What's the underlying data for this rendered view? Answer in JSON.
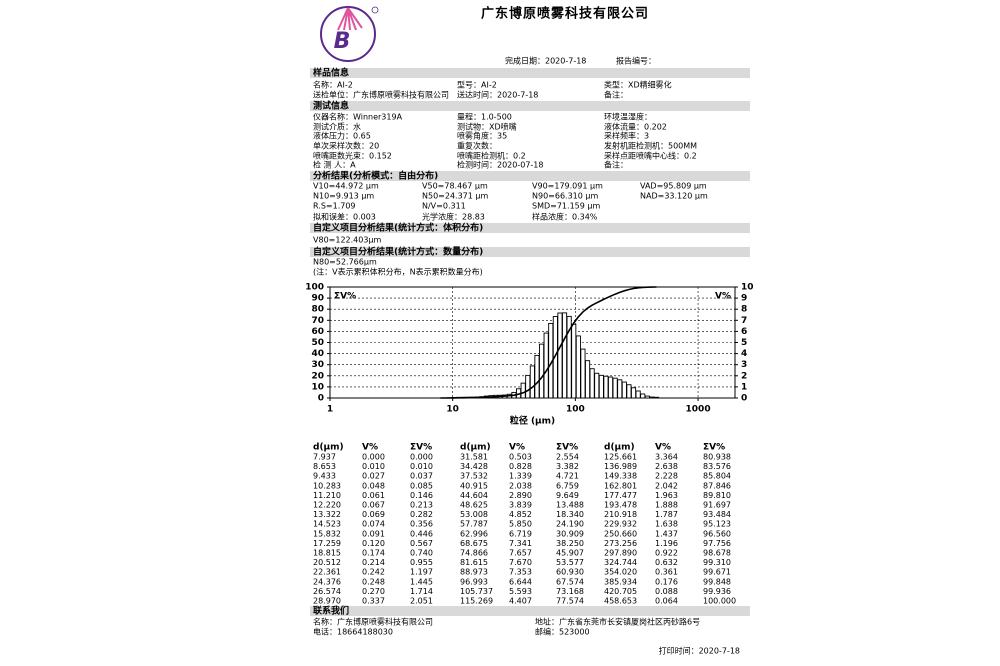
{
  "header": {
    "logo": "B",
    "title": "广东博原喷雾科技有限公司",
    "completion_date": "完成日期：2020-7-18",
    "report_no": "报告编号："
  },
  "sections": [
    {
      "title": "样品信息",
      "rows": [
        [
          "名称：AI-2",
          "型号：AI-2",
          "类型：XD精细雾化"
        ],
        [
          "送检单位：广东博原喷雾科技有限公司",
          "送达时间：2020-7-18",
          "备注："
        ]
      ]
    },
    {
      "title": "测试信息",
      "rows": [
        [
          "仪器名称：Winner319A",
          "量程：1.0-500",
          "环境温湿度："
        ],
        [
          "测试介质：水",
          "测试物：XD喷嘴",
          "液体流量：0.202"
        ],
        [
          "液体压力：0.65",
          "喷雾角度：35",
          "采样频率：3"
        ],
        [
          "单次采样次数：20",
          "重复次数：",
          "发射机距检测机：500MM"
        ],
        [
          "喷嘴距数光束：0.152",
          "喷嘴距检测机：0.2",
          "采样点距喷嘴中心线：0.2"
        ],
        [
          "检 测 人：A",
          "检测时间：2020-07-18",
          "备注："
        ]
      ]
    },
    {
      "title": "分析结果(分析模式：自由分布)",
      "rows": [
        [
          "V10=44.972 μm",
          "V50=78.467 μm",
          "V90=179.091 μm",
          "VAD=95.809 μm"
        ],
        [
          "N10=9.913 μm",
          "N50=24.371 μm",
          "N90=66.310 μm",
          "NAD=33.120 μm"
        ],
        [
          "R.S=1.709",
          "N/V=0.311",
          "SMD=71.159 μm"
        ],
        [
          "拟和误差：0.003",
          "光学浓度：28.83",
          "样品浓度：0.34%"
        ]
      ]
    },
    {
      "title": "自定义项目分析结果(统计方式：体积分布)",
      "rows": [
        [
          "V80=122.403μm"
        ]
      ]
    },
    {
      "title": "自定义项目分析结果(统计方式：数量分布)",
      "rows": [
        [
          "N80=52.766μm"
        ],
        [
          "(注：V表示累积体积分布，N表示累积数量分布)"
        ]
      ]
    },
    {
      "title": "联系我们",
      "rows": [
        [
          "名称：广东博原喷雾科技有限公司",
          "地址：广东省东莞市长安镇厦岗社区丙砂路6号"
        ],
        [
          "电话：18664188030",
          "邮编：523000"
        ]
      ]
    }
  ],
  "chart_data": {
    "type": "histogram",
    "y_label": "ΣV%",
    "y2_label": "V%",
    "x_label": "粒径 (μm)",
    "x_scale": "log",
    "xlim": [
      1,
      2000
    ],
    "ylim": [
      0,
      100
    ],
    "y2lim": [
      0,
      10
    ],
    "xticks": [
      1,
      10,
      100,
      1000
    ],
    "yticks": [
      0,
      10,
      20,
      30,
      40,
      50,
      60,
      70,
      80,
      90,
      100
    ],
    "y2ticks": [
      0,
      1,
      2,
      3,
      4,
      5,
      6,
      7,
      8,
      9,
      10
    ],
    "grid": true,
    "bar_color": "#000000",
    "line_color": "#000000"
  },
  "table": {
    "header": [
      "d(μm)",
      "V%",
      "ΣV%",
      "d(μm)",
      "V%",
      "ΣV%",
      "d(μm)",
      "V%",
      "ΣV%"
    ],
    "rows": [
      [
        "7.937",
        "0.000",
        "0.000",
        "31.581",
        "0.503",
        "2.554",
        "125.661",
        "3.364",
        "80.938"
      ],
      [
        "8.653",
        "0.010",
        "0.010",
        "34.428",
        "0.828",
        "3.382",
        "136.989",
        "2.638",
        "83.576"
      ],
      [
        "9.433",
        "0.027",
        "0.037",
        "37.532",
        "1.339",
        "4.721",
        "149.338",
        "2.228",
        "85.804"
      ],
      [
        "10.283",
        "0.048",
        "0.085",
        "40.915",
        "2.038",
        "6.759",
        "162.801",
        "2.042",
        "87.846"
      ],
      [
        "11.210",
        "0.061",
        "0.146",
        "44.604",
        "2.890",
        "9.649",
        "177.477",
        "1.963",
        "89.810"
      ],
      [
        "12.220",
        "0.067",
        "0.213",
        "48.625",
        "3.839",
        "13.488",
        "193.478",
        "1.888",
        "91.697"
      ],
      [
        "13.322",
        "0.069",
        "0.282",
        "53.008",
        "4.852",
        "18.340",
        "210.918",
        "1.787",
        "93.484"
      ],
      [
        "14.523",
        "0.074",
        "0.356",
        "57.787",
        "5.850",
        "24.190",
        "229.932",
        "1.638",
        "95.123"
      ],
      [
        "15.832",
        "0.091",
        "0.446",
        "62.996",
        "6.719",
        "30.909",
        "250.660",
        "1.437",
        "96.560"
      ],
      [
        "17.259",
        "0.120",
        "0.567",
        "68.675",
        "7.341",
        "38.250",
        "273.256",
        "1.196",
        "97.756"
      ],
      [
        "18.815",
        "0.174",
        "0.740",
        "74.866",
        "7.657",
        "45.907",
        "297.890",
        "0.922",
        "98.678"
      ],
      [
        "20.512",
        "0.214",
        "0.955",
        "81.615",
        "7.670",
        "53.577",
        "324.744",
        "0.632",
        "99.310"
      ],
      [
        "22.361",
        "0.242",
        "1.197",
        "88.973",
        "7.353",
        "60.930",
        "354.020",
        "0.361",
        "99.671"
      ],
      [
        "24.376",
        "0.248",
        "1.445",
        "96.993",
        "6.644",
        "67.574",
        "385.934",
        "0.176",
        "99.848"
      ],
      [
        "26.574",
        "0.270",
        "1.714",
        "105.737",
        "5.593",
        "73.168",
        "420.705",
        "0.088",
        "99.936"
      ],
      [
        "28.970",
        "0.337",
        "2.051",
        "115.269",
        "4.407",
        "77.574",
        "458.653",
        "0.064",
        "100.000"
      ]
    ]
  },
  "footer": "打印时间：2020-7-18"
}
